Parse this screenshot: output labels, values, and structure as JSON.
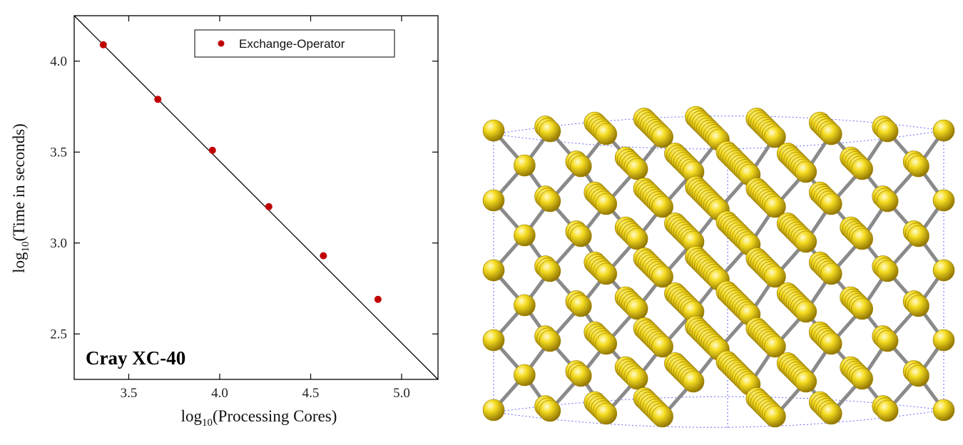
{
  "chart_data": {
    "type": "scatter",
    "x": [
      3.36,
      3.66,
      3.96,
      4.27,
      4.57,
      4.87
    ],
    "series": [
      {
        "name": "Exchange-Operator",
        "values": [
          4.09,
          3.79,
          3.51,
          3.2,
          2.93,
          2.69
        ],
        "color": "#c00000"
      }
    ],
    "reference_line": {
      "x": [
        3.2,
        5.2
      ],
      "y": [
        4.25,
        2.25
      ],
      "color": "#000000"
    },
    "xlabel": {
      "prefix": "log",
      "sub": "10",
      "rest": "(Processing Cores)"
    },
    "ylabel": {
      "prefix": "log",
      "sub": "10",
      "rest": "(Time in seconds)"
    },
    "xlim": [
      3.2,
      5.2
    ],
    "ylim": [
      2.25,
      4.25
    ],
    "xticks": [
      "3.5",
      "4.0",
      "4.5",
      "5.0"
    ],
    "yticks": [
      "2.5",
      "3.0",
      "3.5",
      "4.0"
    ],
    "annotation": "Cray XC-40",
    "legend_position": "top-right",
    "grid": false
  },
  "structure_panel": {
    "atom_color": "#e8c800",
    "bond_color": "#8a8a8a",
    "cell_color": "#6a6aff"
  }
}
